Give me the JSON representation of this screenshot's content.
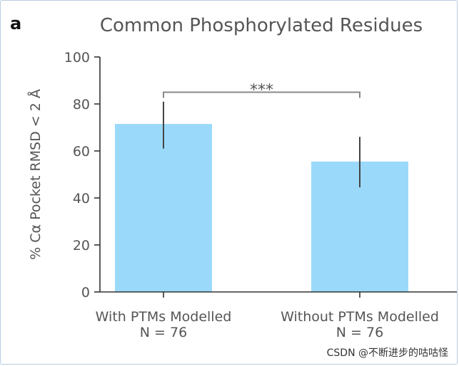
{
  "panel_label": "a",
  "watermark": "CSDN @不断进步的咕咕怪",
  "colors": {
    "bar": "#9bd9fb",
    "axis": "#333333",
    "errorbar": "#444444",
    "text": "#555555"
  },
  "chart_data": {
    "type": "bar",
    "title": "Common Phosphorylated Residues",
    "xlabel": "",
    "ylabel": "% Cα Pocket RMSD < 2 Å",
    "ylim": [
      0,
      100
    ],
    "yticks": [
      0,
      20,
      40,
      60,
      80,
      100
    ],
    "categories": [
      {
        "line1": "With PTMs Modelled",
        "line2": "N = 76"
      },
      {
        "line1": "Without PTMs Modelled",
        "line2": "N = 76"
      }
    ],
    "values": [
      71.5,
      55.5
    ],
    "error_low": [
      61,
      44.5
    ],
    "error_high": [
      81,
      66
    ],
    "significance": {
      "between": [
        0,
        1
      ],
      "label": "***",
      "y": 85
    }
  }
}
